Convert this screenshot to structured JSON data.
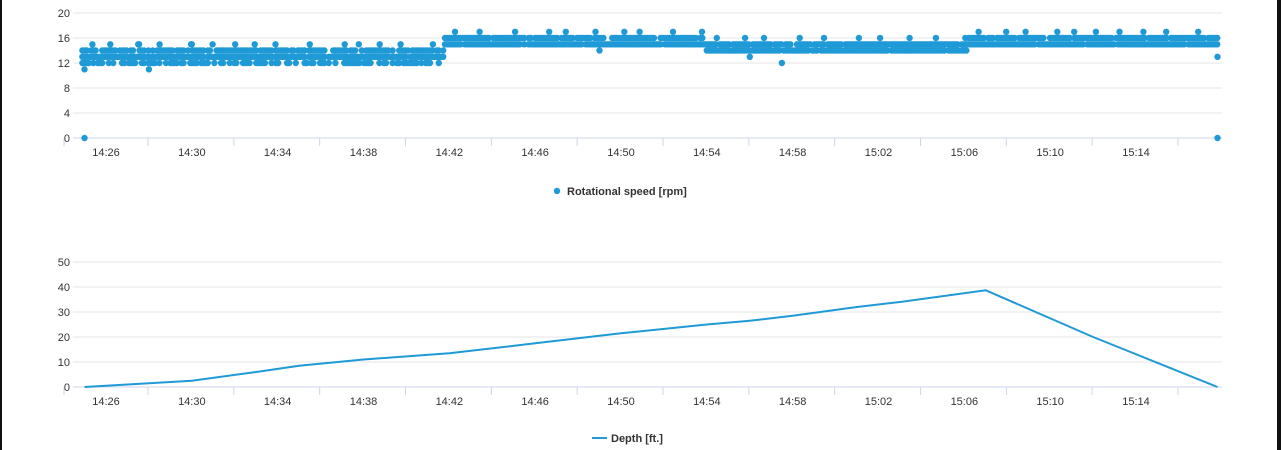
{
  "chart_data": [
    {
      "type": "scatter",
      "color": "#1f9ad6",
      "series": [
        {
          "name": "Rotational speed [rpm]"
        }
      ],
      "ylim": [
        0,
        20
      ],
      "yticks": [
        0,
        4,
        8,
        12,
        16,
        20
      ],
      "xticks": [
        "14:26",
        "14:30",
        "14:34",
        "14:38",
        "14:42",
        "14:46",
        "14:50",
        "14:54",
        "14:58",
        "15:02",
        "15:06",
        "15:10",
        "15:14"
      ],
      "xlim_minutes": [
        24.8,
        17.8
      ],
      "legend": "bottom-center",
      "grid": true,
      "segments": [
        {
          "from": "14:24.9",
          "to": "14:41.8",
          "values": [
            12,
            13,
            14
          ]
        },
        {
          "from": "14:41.8",
          "to": "14:54.0",
          "values": [
            15,
            16
          ]
        },
        {
          "from": "14:54.0",
          "to": "15:06.2",
          "values": [
            14,
            15
          ]
        },
        {
          "from": "15:06.2",
          "to": "15:17.8",
          "values": [
            15,
            16
          ]
        }
      ],
      "outliers": [
        {
          "x": "14:25",
          "y": 0
        },
        {
          "x": "14:25",
          "y": 11
        },
        {
          "x": "14:27.5",
          "y": 15
        },
        {
          "x": "14:28",
          "y": 11
        },
        {
          "x": "14:30",
          "y": 15
        },
        {
          "x": "14:49",
          "y": 14
        },
        {
          "x": "14:56",
          "y": 13
        },
        {
          "x": "14:57.5",
          "y": 12
        },
        {
          "x": "15:17.8",
          "y": 13
        },
        {
          "x": "15:17.8",
          "y": 0
        }
      ]
    },
    {
      "type": "line",
      "color": "#1f9ad6",
      "series": [
        {
          "name": "Depth [ft.]",
          "points": [
            {
              "x": "14:25",
              "y": 0
            },
            {
              "x": "14:27",
              "y": 1
            },
            {
              "x": "14:30",
              "y": 2.5
            },
            {
              "x": "14:33",
              "y": 6
            },
            {
              "x": "14:35",
              "y": 8.5
            },
            {
              "x": "14:38",
              "y": 11
            },
            {
              "x": "14:42",
              "y": 13.5
            },
            {
              "x": "14:46",
              "y": 17.5
            },
            {
              "x": "14:50",
              "y": 21.5
            },
            {
              "x": "14:54",
              "y": 25
            },
            {
              "x": "14:56",
              "y": 26.5
            },
            {
              "x": "14:58",
              "y": 28.5
            },
            {
              "x": "15:01",
              "y": 32
            },
            {
              "x": "15:03",
              "y": 34
            },
            {
              "x": "15:07",
              "y": 38.7
            },
            {
              "x": "15:12",
              "y": 20
            },
            {
              "x": "15:17.8",
              "y": 0
            }
          ]
        }
      ],
      "ylim": [
        0,
        50
      ],
      "yticks": [
        0,
        10,
        20,
        30,
        40,
        50
      ],
      "xticks": [
        "14:26",
        "14:30",
        "14:34",
        "14:38",
        "14:42",
        "14:46",
        "14:50",
        "14:54",
        "14:58",
        "15:02",
        "15:06",
        "15:10",
        "15:14"
      ],
      "legend": "bottom-center",
      "grid": true
    }
  ]
}
